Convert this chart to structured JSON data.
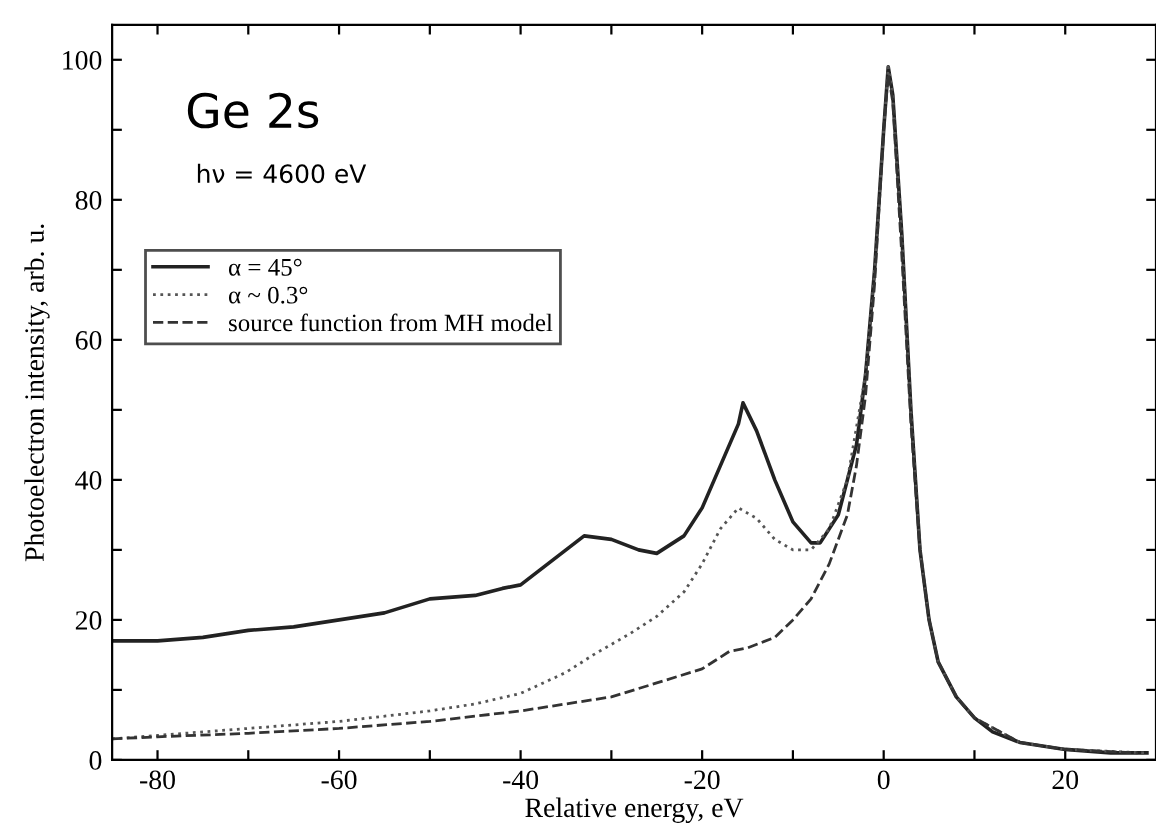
{
  "chart_data": {
    "type": "line",
    "xlabel": "Relative energy, eV",
    "ylabel": "Photoelectron intensity, arb. u.",
    "annotations": [
      "Ge 2s",
      "hν = 4600 eV"
    ],
    "xlim": [
      -85,
      30
    ],
    "ylim": [
      0,
      105
    ],
    "xticks": [
      -80,
      {
        "value": -70,
        "label": null
      },
      -60,
      {
        "value": -50,
        "label": null
      },
      -40,
      {
        "value": -30,
        "label": null
      },
      -20,
      {
        "value": -10,
        "label": null
      },
      0,
      {
        "value": 10,
        "label": null
      },
      20
    ],
    "yticks": [
      0,
      {
        "value": 10,
        "label": null
      },
      20,
      {
        "value": 30,
        "label": null
      },
      40,
      {
        "value": 50,
        "label": null
      },
      60,
      {
        "value": 70,
        "label": null
      },
      80,
      {
        "value": 90,
        "label": null
      },
      100
    ],
    "grid": false,
    "legend": "top left",
    "series": [
      {
        "name": "α = 45°",
        "color": "#222222",
        "line_style": "solid",
        "x": [
          -85,
          -80,
          -75,
          -70,
          -65,
          -60,
          -55,
          -50,
          -45,
          -42,
          -40,
          -38,
          -35,
          -33,
          -30,
          -27,
          -25,
          -22,
          -20,
          -18,
          -16,
          -15.5,
          -14,
          -12,
          -10,
          -8,
          -7,
          -5,
          -3,
          -2,
          -1,
          0,
          0.5,
          1,
          2,
          3,
          4,
          5,
          6,
          8,
          10,
          12,
          15,
          20,
          25,
          29
        ],
        "values": [
          17,
          17,
          17.5,
          18.5,
          19,
          20,
          21,
          23,
          23.5,
          24.5,
          25,
          27,
          30,
          32,
          31.5,
          30,
          29.5,
          32,
          36,
          42,
          48,
          51,
          47,
          40,
          34,
          31,
          31,
          35,
          45,
          55,
          70,
          90,
          99,
          95,
          75,
          50,
          30,
          20,
          14,
          9,
          6,
          4,
          2.5,
          1.5,
          1,
          1
        ]
      },
      {
        "name": "α ~ 0.3°",
        "color": "#555555",
        "line_style": "dotted",
        "x": [
          -85,
          -80,
          -70,
          -60,
          -50,
          -45,
          -40,
          -35,
          -32,
          -30,
          -28,
          -25,
          -22,
          -20,
          -18,
          -16,
          -14,
          -12,
          -10,
          -8,
          -6,
          -4,
          -2,
          -1,
          0,
          0.5,
          1,
          2,
          3,
          4,
          5,
          6,
          8,
          10,
          15,
          20,
          29
        ],
        "values": [
          3,
          3.5,
          4.5,
          5.5,
          7,
          8,
          9.5,
          12.5,
          15,
          16.5,
          18,
          20.5,
          24,
          28,
          33,
          36,
          34.5,
          31.5,
          30,
          30,
          33,
          40,
          55,
          70,
          90,
          99,
          95,
          75,
          50,
          30,
          20,
          14,
          9,
          6,
          2.5,
          1.5,
          1
        ]
      },
      {
        "name": "source function from MH model",
        "color": "#333333",
        "line_style": "dashed",
        "x": [
          -85,
          -80,
          -70,
          -60,
          -50,
          -40,
          -35,
          -30,
          -25,
          -20,
          -17,
          -15,
          -12,
          -10,
          -8,
          -6,
          -4,
          -3,
          -2,
          -1,
          0,
          0.5,
          1,
          2,
          3,
          4,
          5,
          6,
          8,
          10,
          15,
          20,
          28
        ],
        "values": [
          3,
          3.3,
          3.8,
          4.5,
          5.5,
          7,
          8,
          9,
          11,
          13,
          15.5,
          16,
          17.5,
          20,
          23,
          28,
          35,
          42,
          52,
          68,
          90,
          98,
          94,
          72,
          48,
          30,
          20,
          14,
          9,
          6,
          2.5,
          1.5,
          1
        ]
      }
    ]
  }
}
